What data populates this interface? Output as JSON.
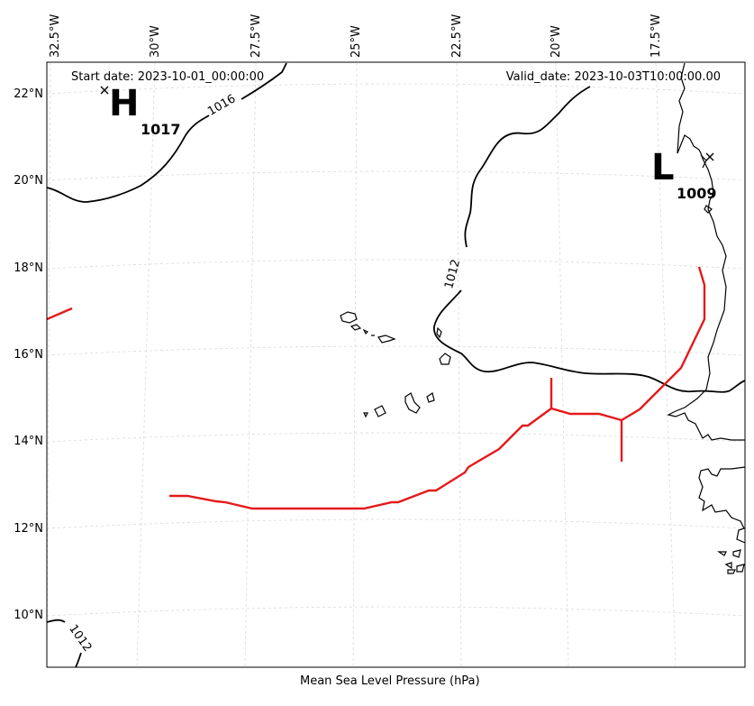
{
  "header": {
    "start_date": "Start date: 2023-10-01_00:00:00",
    "valid_date": "Valid_date: 2023-10-03T10:00:00.00"
  },
  "longitude_labels": [
    "32.5°W",
    "30°W",
    "27.5°W",
    "25°W",
    "22.5°W",
    "20°W",
    "17.5°W"
  ],
  "latitude_labels": [
    "22°N",
    "20°N",
    "18°N",
    "16°N",
    "14°N",
    "12°N",
    "10°N"
  ],
  "isobar_labels": [
    "1016",
    "1012",
    "1012"
  ],
  "pressure_centers": [
    {
      "type": "high",
      "letter": "H",
      "value": "1017"
    },
    {
      "type": "low",
      "letter": "L",
      "value": "1009"
    }
  ],
  "caption": "Mean Sea Level Pressure (hPa)",
  "colors": {
    "isobar": "#000000",
    "coastline": "#000000",
    "front": "#e41a1c",
    "gridline": "#cccccc"
  }
}
